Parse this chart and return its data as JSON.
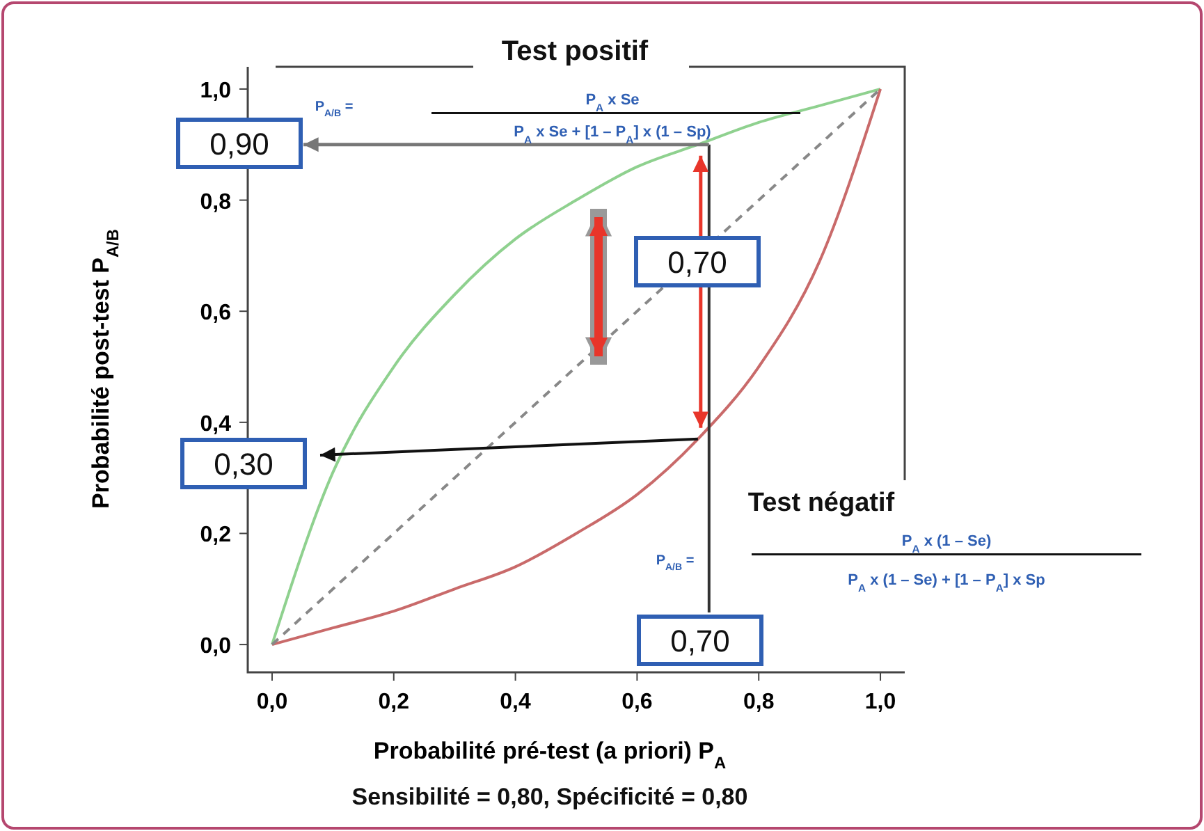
{
  "chart_data": {
    "type": "line",
    "xlabel": "Probabilité pré-test (a priori) P$_{A}$",
    "ylabel": "Probabilité post-test P$_{A/B}$",
    "x": [
      0,
      0.1,
      0.2,
      0.3,
      0.4,
      0.5,
      0.6,
      0.7,
      0.8,
      0.9,
      1
    ],
    "series": [
      {
        "color": "#8fd18f",
        "values": [
          0,
          0.31,
          0.5,
          0.63,
          0.73,
          0.8,
          0.86,
          0.9,
          0.94,
          0.97,
          1
        ]
      },
      {
        "color": "#c96a6a",
        "values": [
          0,
          0.03,
          0.06,
          0.1,
          0.14,
          0.2,
          0.27,
          0.37,
          0.5,
          0.69,
          1
        ]
      },
      {
        "color": "#888888",
        "x": [
          0,
          1
        ],
        "values": [
          0,
          1
        ],
        "line_style": "dashed"
      }
    ],
    "xlim": [
      -0.04,
      1.04
    ],
    "ylim": [
      -0.05,
      1.04
    ],
    "xticks": [
      {
        "value": 0,
        "label": "0,0"
      },
      {
        "value": 0.2,
        "label": "0,2"
      },
      {
        "value": 0.4,
        "label": "0,4"
      },
      {
        "value": 0.6,
        "label": "0,6"
      },
      {
        "value": 0.8,
        "label": "0,8"
      },
      {
        "value": 1,
        "label": "1,0"
      }
    ],
    "yticks": [
      {
        "value": 0,
        "label": "0,0"
      },
      {
        "value": 0.2,
        "label": "0,2"
      },
      {
        "value": 0.4,
        "label": "0,4"
      },
      {
        "value": 0.6,
        "label": "0,6"
      },
      {
        "value": 0.8,
        "label": "0,8"
      },
      {
        "value": 1,
        "label": "1,0"
      }
    ],
    "grid": false,
    "marker": "none",
    "annotations": [
      "Test positif",
      "P$_{A/B}$ =",
      "P$_{A}$ x Se",
      "P$_{A}$ x Se + [1 – P$_{A}$] x (1 – Sp)",
      "Test négatif",
      "P$_{A/B}$ =",
      "P$_{A}$  x  (1 – Se)",
      "P$_{A}$ x (1 – Se) + [1 – P$_{A}$] x Sp",
      "0,90",
      "0,70",
      "0,30",
      "0,70",
      "Sensibilité = 0,80, Spécificité = 0,80"
    ]
  }
}
